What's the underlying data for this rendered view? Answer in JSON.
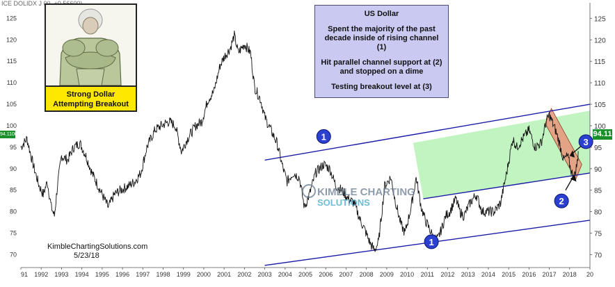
{
  "header_label": "ICE DOLIDX J",
  "header_change": "00, +0.56600)",
  "price_left": "94.1100",
  "price_right": "94.11",
  "note": {
    "title": "US Dollar",
    "line1": "Spent the majority of the past decade inside of rising channel (1)",
    "line2": "Hit parallel channel support at (2) and stopped on a dime",
    "line3": "Testing breakout level at (3)"
  },
  "meme": {
    "caption_line1": "Strong Dollar",
    "caption_line2": "Attempting Breakout"
  },
  "credit": "KimbleChartingSolutions.com",
  "date": "5/23/18",
  "watermark": {
    "line1": "KIMBLE CHARTING",
    "line2": "SOLUTIONS"
  },
  "markers": [
    {
      "label": "1"
    },
    {
      "label": "1"
    },
    {
      "label": "2"
    },
    {
      "label": "3"
    }
  ],
  "colors": {
    "price_line": "#111111",
    "channel_line": "#1a1aa8",
    "green_zone": "#b6f2b6",
    "red_zone": "#e8957a",
    "marker_fill": "#2b3fd1",
    "badge": "#1b8f2a"
  },
  "chart_data": {
    "type": "line",
    "series": [
      {
        "values": [
          [
            1991.0,
            95
          ],
          [
            1991.3,
            97
          ],
          [
            1991.6,
            91
          ],
          [
            1991.9,
            86
          ],
          [
            1992.1,
            84
          ],
          [
            1992.3,
            87
          ],
          [
            1992.5,
            81
          ],
          [
            1992.65,
            79
          ],
          [
            1992.8,
            86
          ],
          [
            1993.0,
            93
          ],
          [
            1993.3,
            92
          ],
          [
            1993.6,
            95
          ],
          [
            1993.9,
            96
          ],
          [
            1994.2,
            93
          ],
          [
            1994.5,
            89
          ],
          [
            1994.8,
            86
          ],
          [
            1995.0,
            84
          ],
          [
            1995.3,
            81
          ],
          [
            1995.6,
            84
          ],
          [
            1995.9,
            85
          ],
          [
            1996.3,
            86
          ],
          [
            1996.6,
            87
          ],
          [
            1996.9,
            89
          ],
          [
            1997.2,
            95
          ],
          [
            1997.6,
            99
          ],
          [
            1997.9,
            100
          ],
          [
            1998.3,
            101
          ],
          [
            1998.6,
            100
          ],
          [
            1998.9,
            94
          ],
          [
            1999.2,
            97
          ],
          [
            1999.6,
            100
          ],
          [
            1999.9,
            101
          ],
          [
            2000.2,
            106
          ],
          [
            2000.5,
            108
          ],
          [
            2000.8,
            114
          ],
          [
            2001.0,
            116
          ],
          [
            2001.3,
            118
          ],
          [
            2001.5,
            121
          ],
          [
            2001.7,
            117
          ],
          [
            2002.0,
            119
          ],
          [
            2002.3,
            117
          ],
          [
            2002.5,
            109
          ],
          [
            2002.8,
            106
          ],
          [
            2003.0,
            102
          ],
          [
            2003.3,
            99
          ],
          [
            2003.6,
            96
          ],
          [
            2003.9,
            90
          ],
          [
            2004.1,
            87
          ],
          [
            2004.4,
            89
          ],
          [
            2004.7,
            88
          ],
          [
            2004.95,
            81
          ],
          [
            2005.2,
            84
          ],
          [
            2005.5,
            89
          ],
          [
            2005.9,
            91
          ],
          [
            2006.2,
            90
          ],
          [
            2006.5,
            86
          ],
          [
            2006.8,
            85
          ],
          [
            2007.1,
            83
          ],
          [
            2007.4,
            82
          ],
          [
            2007.7,
            78
          ],
          [
            2007.9,
            76
          ],
          [
            2008.2,
            72.5
          ],
          [
            2008.4,
            71
          ],
          [
            2008.6,
            73
          ],
          [
            2008.9,
            86
          ],
          [
            2009.2,
            88
          ],
          [
            2009.4,
            83
          ],
          [
            2009.7,
            77
          ],
          [
            2009.9,
            75
          ],
          [
            2010.2,
            81
          ],
          [
            2010.45,
            88
          ],
          [
            2010.7,
            81
          ],
          [
            2010.9,
            78
          ],
          [
            2011.1,
            76
          ],
          [
            2011.3,
            74
          ],
          [
            2011.5,
            73.5
          ],
          [
            2011.7,
            76
          ],
          [
            2011.9,
            79
          ],
          [
            2012.1,
            80
          ],
          [
            2012.4,
            83
          ],
          [
            2012.6,
            80
          ],
          [
            2012.8,
            79
          ],
          [
            2013.1,
            82
          ],
          [
            2013.4,
            84
          ],
          [
            2013.7,
            80
          ],
          [
            2014.0,
            80
          ],
          [
            2014.3,
            80
          ],
          [
            2014.6,
            82
          ],
          [
            2014.9,
            89
          ],
          [
            2015.2,
            97
          ],
          [
            2015.4,
            95
          ],
          [
            2015.7,
            97
          ],
          [
            2016.0,
            99
          ],
          [
            2016.3,
            95
          ],
          [
            2016.6,
            96
          ],
          [
            2016.85,
            101
          ],
          [
            2017.0,
            102.5
          ],
          [
            2017.3,
            99
          ],
          [
            2017.5,
            96
          ],
          [
            2017.7,
            92
          ],
          [
            2017.9,
            93
          ],
          [
            2018.1,
            89
          ],
          [
            2018.25,
            88.5
          ],
          [
            2018.4,
            92
          ],
          [
            2018.42,
            94.11
          ]
        ]
      }
    ],
    "xlim": [
      1991,
      2019
    ],
    "ylim": [
      67,
      127
    ],
    "xticks": [
      "91",
      "1992",
      "1993",
      "1994",
      "1995",
      "1996",
      "1997",
      "1998",
      "1999",
      "2000",
      "2001",
      "2002",
      "2003",
      "2004",
      "2005",
      "2006",
      "2007",
      "2008",
      "2009",
      "2010",
      "2011",
      "2012",
      "2013",
      "2014",
      "2015",
      "2016",
      "2017",
      "2018",
      "20"
    ],
    "yticks": [
      70,
      75,
      80,
      85,
      90,
      95,
      100,
      105,
      110,
      115,
      120,
      125
    ],
    "channel_lines": [
      {
        "from": [
          2003.0,
          92
        ],
        "to": [
          2019.0,
          105
        ]
      },
      {
        "from": [
          2010.8,
          83
        ],
        "to": [
          2019.0,
          89
        ]
      },
      {
        "from": [
          2003.0,
          67.5
        ],
        "to": [
          2019.0,
          78
        ]
      }
    ],
    "green_zone": [
      [
        2010.3,
        96
      ],
      [
        2019.0,
        103.5
      ],
      [
        2019.0,
        89
      ],
      [
        2010.8,
        83
      ]
    ],
    "red_zone": [
      [
        2016.8,
        100.5
      ],
      [
        2017.1,
        104
      ],
      [
        2018.6,
        91
      ],
      [
        2018.3,
        87.5
      ]
    ],
    "grid": false
  }
}
